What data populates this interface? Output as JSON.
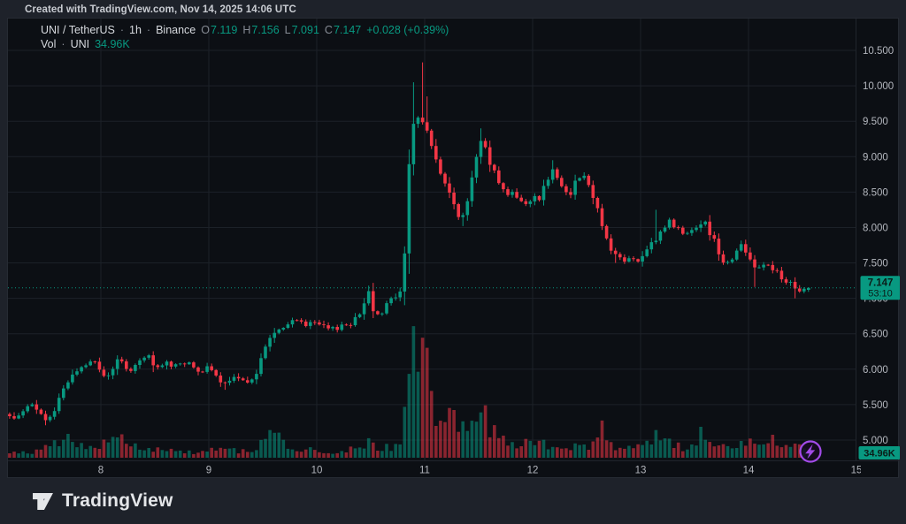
{
  "attribution": "Created with TradingView.com, Nov 14, 2025 14:06 UTC",
  "legend": {
    "symbol": "UNI / TetherUS",
    "separator": "·",
    "interval": "1h",
    "exchange": "Binance",
    "open_label": "O",
    "open": "7.119",
    "high_label": "H",
    "high": "7.156",
    "low_label": "L",
    "low": "7.091",
    "close_label": "C",
    "close": "7.147",
    "change": "+0.028 (+0.39%)",
    "volume_label": "Vol",
    "volume_unit": "UNI",
    "volume_value": "34.96K"
  },
  "price_label": {
    "price": "7.147",
    "countdown": "53:10"
  },
  "volume_badge": "34.96K",
  "footer": {
    "brand": "TradingView"
  },
  "colors": {
    "up": "#089981",
    "down": "#F23645",
    "grid": "#1c2128",
    "border": "#20252c",
    "axis_text": "#b4b7be",
    "label_text": "#0b1d19",
    "purple": "#a24be8",
    "panel_bg": "#0c0f14",
    "outer_bg": "#1e222a"
  },
  "chart_data": {
    "type": "candlestick_with_volume",
    "title": "UNI / TetherUS · 1h · Binance",
    "x_unit": "day of November 2025 (fractional = hour of day)",
    "x_range": [
      7.155,
      14.556
    ],
    "candle_count": 179,
    "price_axis": {
      "side": "right",
      "range_shown": [
        4.78,
        10.76
      ],
      "ticks": [
        {
          "label": "10.500",
          "value": 10.5
        },
        {
          "label": "10.000",
          "value": 10.0
        },
        {
          "label": "9.500",
          "value": 9.5
        },
        {
          "label": "9.000",
          "value": 9.0
        },
        {
          "label": "8.500",
          "value": 8.5
        },
        {
          "label": "8.000",
          "value": 8.0
        },
        {
          "label": "7.500",
          "value": 7.5
        },
        {
          "label": "7.000",
          "value": 7.0
        },
        {
          "label": "6.500",
          "value": 6.5
        },
        {
          "label": "6.000",
          "value": 6.0
        },
        {
          "label": "5.500",
          "value": 5.5
        },
        {
          "label": "5.000",
          "value": 5.0
        }
      ]
    },
    "time_axis": {
      "ticks": [
        {
          "label": "8",
          "day": 8
        },
        {
          "label": "9",
          "day": 9
        },
        {
          "label": "10",
          "day": 10
        },
        {
          "label": "11",
          "day": 11
        },
        {
          "label": "12",
          "day": 12
        },
        {
          "label": "13",
          "day": 13
        },
        {
          "label": "14",
          "day": 14
        },
        {
          "label": "15",
          "day": 15
        }
      ]
    },
    "last_candle": {
      "o": 7.119,
      "h": 7.156,
      "l": 7.091,
      "c": 7.147,
      "v": 34.96
    },
    "price_path": [
      [
        7.155,
        5.33
      ],
      [
        7.2,
        5.3
      ],
      [
        7.28,
        5.44
      ],
      [
        7.36,
        5.48
      ],
      [
        7.44,
        5.36
      ],
      [
        7.5,
        5.27
      ],
      [
        7.56,
        5.38
      ],
      [
        7.62,
        5.62
      ],
      [
        7.7,
        5.86
      ],
      [
        7.78,
        5.98
      ],
      [
        7.86,
        6.06
      ],
      [
        7.94,
        6.1
      ],
      [
        8.0,
        5.99
      ],
      [
        8.05,
        5.85
      ],
      [
        8.12,
        6.05
      ],
      [
        8.18,
        6.15
      ],
      [
        8.24,
        5.96
      ],
      [
        8.3,
        6.04
      ],
      [
        8.37,
        6.1
      ],
      [
        8.44,
        6.18
      ],
      [
        8.5,
        6.01
      ],
      [
        8.56,
        6.04
      ],
      [
        8.62,
        6.09
      ],
      [
        8.68,
        6.05
      ],
      [
        8.74,
        6.11
      ],
      [
        8.8,
        6.07
      ],
      [
        8.86,
        6.03
      ],
      [
        8.92,
        5.98
      ],
      [
        9.0,
        6.01
      ],
      [
        9.08,
        5.87
      ],
      [
        9.15,
        5.78
      ],
      [
        9.22,
        5.87
      ],
      [
        9.3,
        5.82
      ],
      [
        9.38,
        5.86
      ],
      [
        9.45,
        5.95
      ],
      [
        9.5,
        6.22
      ],
      [
        9.56,
        6.45
      ],
      [
        9.62,
        6.52
      ],
      [
        9.68,
        6.56
      ],
      [
        9.74,
        6.62
      ],
      [
        9.8,
        6.72
      ],
      [
        9.86,
        6.68
      ],
      [
        9.92,
        6.61
      ],
      [
        10.0,
        6.66
      ],
      [
        10.06,
        6.58
      ],
      [
        10.14,
        6.55
      ],
      [
        10.22,
        6.62
      ],
      [
        10.3,
        6.64
      ],
      [
        10.38,
        6.72
      ],
      [
        10.44,
        6.96
      ],
      [
        10.48,
        7.1
      ],
      [
        10.52,
        6.86
      ],
      [
        10.58,
        6.79
      ],
      [
        10.64,
        6.88
      ],
      [
        10.7,
        7.0
      ],
      [
        10.76,
        7.08
      ],
      [
        10.8,
        7.1
      ],
      [
        10.84,
        8.55
      ],
      [
        10.88,
        9.5
      ],
      [
        10.92,
        9.45
      ],
      [
        10.96,
        9.62
      ],
      [
        11.0,
        9.4
      ],
      [
        11.04,
        9.32
      ],
      [
        11.08,
        9.02
      ],
      [
        11.12,
        8.95
      ],
      [
        11.16,
        8.68
      ],
      [
        11.2,
        8.56
      ],
      [
        11.24,
        8.45
      ],
      [
        11.28,
        8.28
      ],
      [
        11.32,
        8.18
      ],
      [
        11.36,
        8.12
      ],
      [
        11.4,
        8.38
      ],
      [
        11.44,
        8.72
      ],
      [
        11.48,
        9.02
      ],
      [
        11.52,
        9.28
      ],
      [
        11.56,
        9.2
      ],
      [
        11.6,
        8.93
      ],
      [
        11.64,
        8.88
      ],
      [
        11.68,
        8.62
      ],
      [
        11.72,
        8.55
      ],
      [
        11.76,
        8.48
      ],
      [
        11.8,
        8.55
      ],
      [
        11.84,
        8.45
      ],
      [
        11.88,
        8.38
      ],
      [
        11.92,
        8.28
      ],
      [
        11.96,
        8.36
      ],
      [
        12.0,
        8.44
      ],
      [
        12.05,
        8.4
      ],
      [
        12.1,
        8.56
      ],
      [
        12.15,
        8.72
      ],
      [
        12.2,
        8.82
      ],
      [
        12.25,
        8.68
      ],
      [
        12.3,
        8.52
      ],
      [
        12.35,
        8.48
      ],
      [
        12.4,
        8.68
      ],
      [
        12.45,
        8.78
      ],
      [
        12.5,
        8.66
      ],
      [
        12.55,
        8.5
      ],
      [
        12.6,
        8.28
      ],
      [
        12.64,
        8.05
      ],
      [
        12.68,
        7.88
      ],
      [
        12.72,
        7.72
      ],
      [
        12.76,
        7.62
      ],
      [
        12.8,
        7.58
      ],
      [
        12.85,
        7.53
      ],
      [
        12.9,
        7.56
      ],
      [
        12.95,
        7.5
      ],
      [
        13.0,
        7.56
      ],
      [
        13.05,
        7.62
      ],
      [
        13.1,
        7.76
      ],
      [
        13.14,
        7.82
      ],
      [
        13.18,
        7.92
      ],
      [
        13.22,
        8.02
      ],
      [
        13.26,
        8.1
      ],
      [
        13.3,
        8.04
      ],
      [
        13.35,
        7.98
      ],
      [
        13.4,
        7.9
      ],
      [
        13.45,
        7.96
      ],
      [
        13.5,
        8.02
      ],
      [
        13.55,
        8.08
      ],
      [
        13.6,
        8.04
      ],
      [
        13.65,
        7.92
      ],
      [
        13.7,
        7.76
      ],
      [
        13.75,
        7.56
      ],
      [
        13.8,
        7.5
      ],
      [
        13.85,
        7.58
      ],
      [
        13.9,
        7.72
      ],
      [
        13.94,
        7.74
      ],
      [
        14.0,
        7.6
      ],
      [
        14.05,
        7.48
      ],
      [
        14.1,
        7.44
      ],
      [
        14.15,
        7.52
      ],
      [
        14.2,
        7.48
      ],
      [
        14.25,
        7.38
      ],
      [
        14.3,
        7.28
      ],
      [
        14.35,
        7.18
      ],
      [
        14.4,
        7.22
      ],
      [
        14.44,
        7.1
      ],
      [
        14.48,
        7.13
      ],
      [
        14.52,
        7.1
      ],
      [
        14.556,
        7.147
      ]
    ],
    "extremes": [
      {
        "day": 7.5,
        "low": 5.21
      },
      {
        "day": 9.15,
        "low": 5.71
      },
      {
        "day": 10.48,
        "high": 7.18
      },
      {
        "day": 10.88,
        "high": 10.05
      },
      {
        "day": 10.96,
        "high": 10.33
      },
      {
        "day": 11.04,
        "high": 9.85
      },
      {
        "day": 11.36,
        "low": 8.02
      },
      {
        "day": 11.52,
        "high": 9.4
      },
      {
        "day": 12.2,
        "high": 8.95
      },
      {
        "day": 12.76,
        "low": 7.5
      },
      {
        "day": 13.14,
        "high": 8.25
      },
      {
        "day": 14.05,
        "low": 7.16
      },
      {
        "day": 14.44,
        "low": 7.0
      }
    ],
    "volume_path": [
      [
        7.155,
        40
      ],
      [
        7.3,
        55
      ],
      [
        7.44,
        70
      ],
      [
        7.52,
        120
      ],
      [
        7.6,
        170
      ],
      [
        7.68,
        200
      ],
      [
        7.76,
        150
      ],
      [
        7.9,
        90
      ],
      [
        8.0,
        160
      ],
      [
        8.08,
        200
      ],
      [
        8.16,
        230
      ],
      [
        8.24,
        160
      ],
      [
        8.35,
        120
      ],
      [
        8.5,
        90
      ],
      [
        8.7,
        70
      ],
      [
        8.9,
        60
      ],
      [
        9.0,
        80
      ],
      [
        9.1,
        100
      ],
      [
        9.2,
        80
      ],
      [
        9.35,
        60
      ],
      [
        9.45,
        90
      ],
      [
        9.52,
        260
      ],
      [
        9.58,
        280
      ],
      [
        9.64,
        200
      ],
      [
        9.72,
        120
      ],
      [
        9.85,
        90
      ],
      [
        10.0,
        70
      ],
      [
        10.1,
        60
      ],
      [
        10.25,
        70
      ],
      [
        10.4,
        110
      ],
      [
        10.48,
        180
      ],
      [
        10.56,
        120
      ],
      [
        10.7,
        90
      ],
      [
        10.78,
        160
      ],
      [
        10.84,
        560
      ],
      [
        10.88,
        1020
      ],
      [
        10.92,
        1050
      ],
      [
        10.96,
        840
      ],
      [
        11.0,
        1010
      ],
      [
        11.04,
        730
      ],
      [
        11.08,
        640
      ],
      [
        11.12,
        460
      ],
      [
        11.16,
        560
      ],
      [
        11.2,
        470
      ],
      [
        11.24,
        600
      ],
      [
        11.28,
        360
      ],
      [
        11.32,
        320
      ],
      [
        11.36,
        430
      ],
      [
        11.4,
        210
      ],
      [
        11.44,
        470
      ],
      [
        11.48,
        300
      ],
      [
        11.52,
        500
      ],
      [
        11.56,
        560
      ],
      [
        11.6,
        240
      ],
      [
        11.64,
        330
      ],
      [
        11.68,
        190
      ],
      [
        11.72,
        260
      ],
      [
        11.78,
        150
      ],
      [
        11.85,
        130
      ],
      [
        11.92,
        160
      ],
      [
        12.0,
        130
      ],
      [
        12.08,
        150
      ],
      [
        12.16,
        140
      ],
      [
        12.25,
        110
      ],
      [
        12.35,
        100
      ],
      [
        12.45,
        140
      ],
      [
        12.55,
        120
      ],
      [
        12.64,
        350
      ],
      [
        12.68,
        190
      ],
      [
        12.75,
        110
      ],
      [
        12.85,
        90
      ],
      [
        12.95,
        100
      ],
      [
        13.05,
        130
      ],
      [
        13.14,
        210
      ],
      [
        13.22,
        160
      ],
      [
        13.3,
        140
      ],
      [
        13.4,
        100
      ],
      [
        13.5,
        130
      ],
      [
        13.56,
        250
      ],
      [
        13.65,
        150
      ],
      [
        13.72,
        140
      ],
      [
        13.8,
        120
      ],
      [
        13.88,
        160
      ],
      [
        13.95,
        140
      ],
      [
        14.0,
        150
      ],
      [
        14.08,
        110
      ],
      [
        14.16,
        160
      ],
      [
        14.24,
        170
      ],
      [
        14.32,
        130
      ],
      [
        14.4,
        140
      ],
      [
        14.47,
        175
      ],
      [
        14.52,
        90
      ],
      [
        14.556,
        35
      ]
    ],
    "volume_scale_max_k": 1100
  }
}
